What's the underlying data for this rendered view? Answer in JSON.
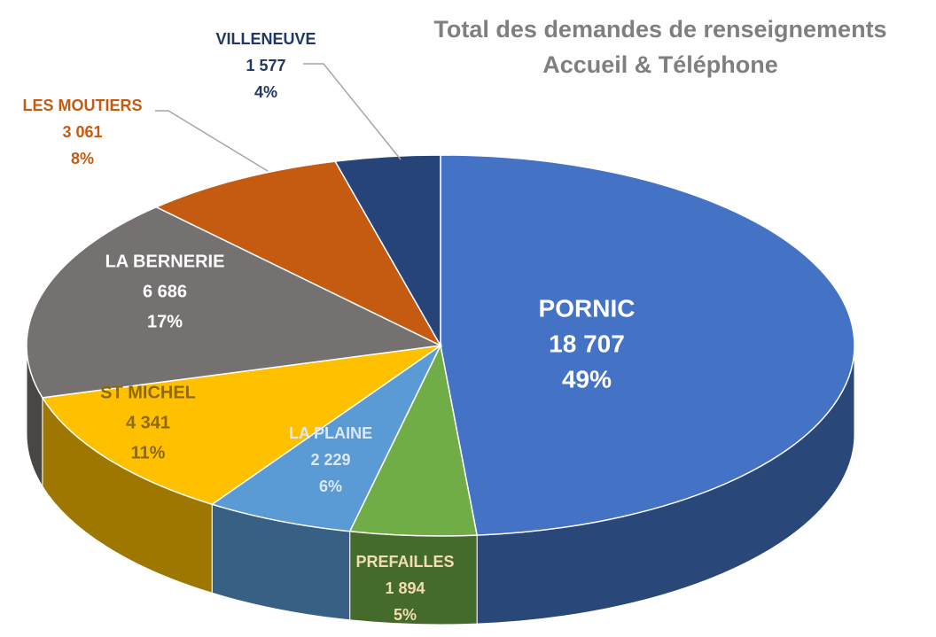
{
  "chart_data": {
    "type": "pie3d",
    "title": [
      "Total des demandes de renseignements",
      "Accueil & Téléphone"
    ],
    "categories": [
      "PORNIC",
      "PREFAILLES",
      "LA PLAINE",
      "ST MICHEL",
      "LA BERNERIE",
      "LES MOUTIERS",
      "VILLENEUVE"
    ],
    "values": [
      18707,
      1894,
      2229,
      4341,
      6686,
      3061,
      1577
    ],
    "value_labels": [
      "18 707",
      "1 894",
      "2 229",
      "4 341",
      "6 686",
      "3 061",
      "1 577"
    ],
    "percent_labels": [
      "49%",
      "5%",
      "6%",
      "11%",
      "17%",
      "8%",
      "4%"
    ],
    "colors": [
      "#4472c4",
      "#70ad47",
      "#5b9bd5",
      "#ffc000",
      "#767171",
      "#c55a11",
      "#264478"
    ],
    "label_colors": [
      "#ffffff",
      "#f3dcb0",
      "#dce8f5",
      "#8c6a00",
      "#ffffff",
      "#c55a11",
      "#203864"
    ]
  }
}
